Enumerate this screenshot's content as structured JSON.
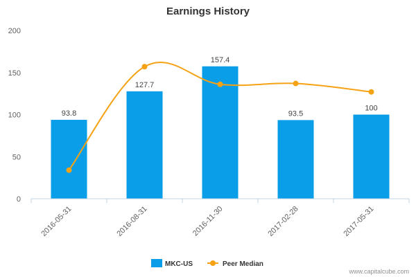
{
  "chart_data": {
    "type": "bar",
    "title": "Earnings History",
    "categories": [
      "2016-05-31",
      "2016-08-31",
      "2016-11-30",
      "2017-02-28",
      "2017-05-31"
    ],
    "ylim": [
      0,
      200
    ],
    "yticks": [
      0,
      50,
      100,
      150,
      200
    ],
    "grid": false,
    "legend_position": "bottom-center",
    "series": [
      {
        "name": "MKC-US",
        "type": "bar",
        "color": "#0a9ee9",
        "values": [
          93.8,
          127.7,
          157.4,
          93.5,
          100
        ],
        "labels": [
          "93.8",
          "127.7",
          "157.4",
          "93.5",
          "100"
        ]
      },
      {
        "name": "Peer Median",
        "type": "line",
        "color": "#f5a214",
        "values": [
          34,
          157,
          136,
          137,
          127
        ]
      }
    ]
  },
  "credit": "www.capitalcube.com"
}
